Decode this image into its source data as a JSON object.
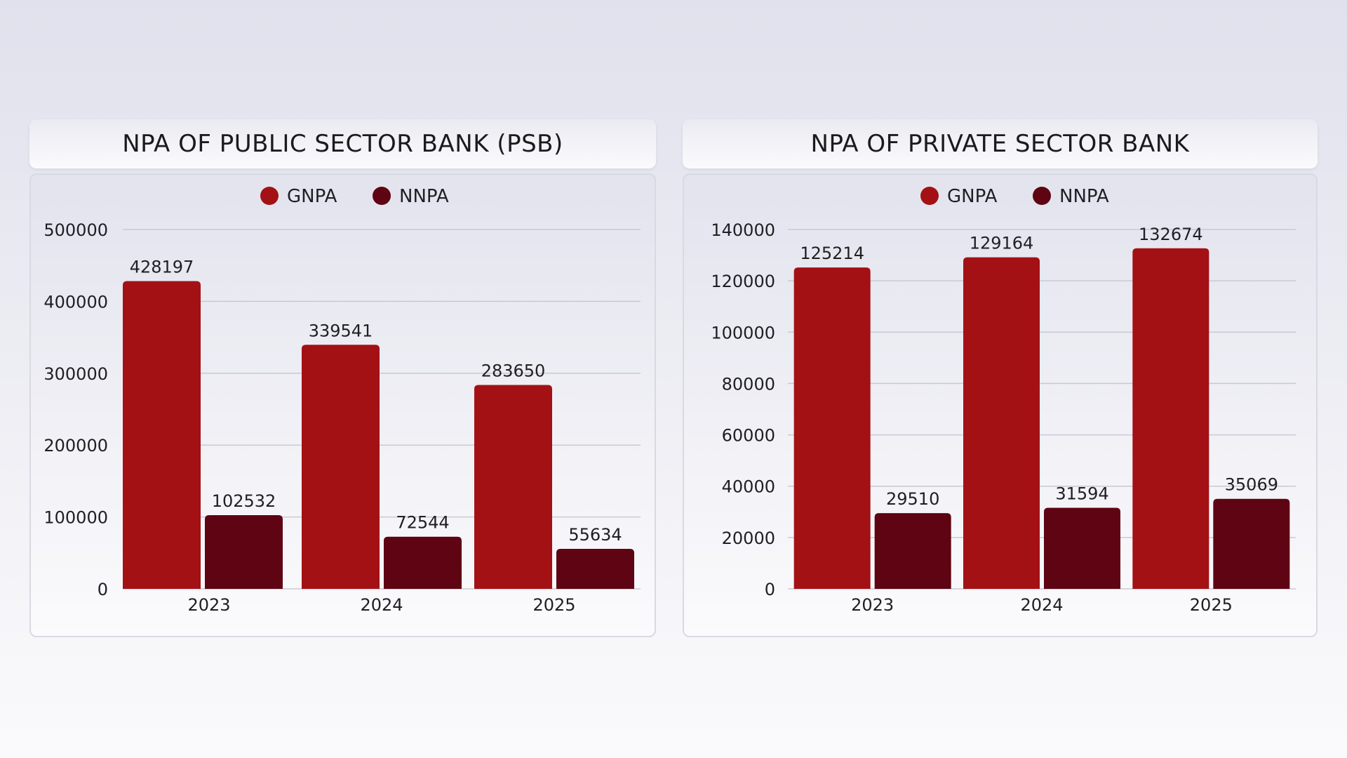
{
  "colors": {
    "gnpa": "#a31115",
    "nnpa": "#5e0412",
    "grid": "#c9c9d3"
  },
  "chart_data": [
    {
      "type": "bar",
      "title": "NPA OF PUBLIC SECTOR BANK (PSB)",
      "categories": [
        "2023",
        "2024",
        "2025"
      ],
      "series": [
        {
          "name": "GNPA",
          "values": [
            428197,
            339541,
            283650
          ]
        },
        {
          "name": "NNPA",
          "values": [
            102532,
            72544,
            55634
          ]
        }
      ],
      "ylim": [
        0,
        500000
      ],
      "yticks": [
        "0",
        "100000",
        "200000",
        "300000",
        "400000",
        "500000"
      ],
      "grid": true,
      "legend_position": "top"
    },
    {
      "type": "bar",
      "title": "NPA OF PRIVATE SECTOR BANK",
      "categories": [
        "2023",
        "2024",
        "2025"
      ],
      "series": [
        {
          "name": "GNPA",
          "values": [
            125214,
            129164,
            132674
          ]
        },
        {
          "name": "NNPA",
          "values": [
            29510,
            31594,
            35069
          ]
        }
      ],
      "ylim": [
        0,
        140000
      ],
      "yticks": [
        "0",
        "20000",
        "40000",
        "60000",
        "80000",
        "100000",
        "120000",
        "140000"
      ],
      "grid": true,
      "legend_position": "top"
    }
  ]
}
